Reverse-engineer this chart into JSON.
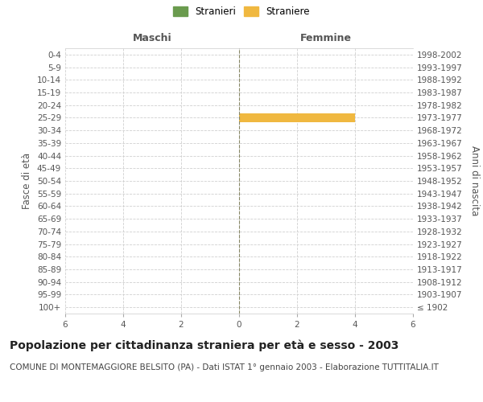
{
  "age_groups": [
    "100+",
    "95-99",
    "90-94",
    "85-89",
    "80-84",
    "75-79",
    "70-74",
    "65-69",
    "60-64",
    "55-59",
    "50-54",
    "45-49",
    "40-44",
    "35-39",
    "30-34",
    "25-29",
    "20-24",
    "15-19",
    "10-14",
    "5-9",
    "0-4"
  ],
  "birth_years": [
    "≤ 1902",
    "1903-1907",
    "1908-1912",
    "1913-1917",
    "1918-1922",
    "1923-1927",
    "1928-1932",
    "1933-1937",
    "1938-1942",
    "1943-1947",
    "1948-1952",
    "1953-1957",
    "1958-1962",
    "1963-1967",
    "1968-1972",
    "1973-1977",
    "1978-1982",
    "1983-1987",
    "1988-1992",
    "1993-1997",
    "1998-2002"
  ],
  "males_stranieri": [
    0,
    0,
    0,
    0,
    0,
    0,
    0,
    0,
    0,
    0,
    0,
    0,
    0,
    0,
    0,
    0,
    0,
    0,
    0,
    0,
    0
  ],
  "females_straniere": [
    0,
    0,
    0,
    0,
    0,
    0,
    0,
    0,
    0,
    0,
    0,
    0,
    0,
    0,
    0,
    4,
    0,
    0,
    0,
    0,
    0
  ],
  "male_color": "#6a9b4e",
  "female_color": "#f0b840",
  "xlim": 6,
  "title": "Popolazione per cittadinanza straniera per età e sesso - 2003",
  "subtitle": "COMUNE DI MONTEMAGGIORE BELSITO (PA) - Dati ISTAT 1° gennaio 2003 - Elaborazione TUTTITALIA.IT",
  "ylabel_left": "Fasce di età",
  "ylabel_right": "Anni di nascita",
  "legend_stranieri": "Stranieri",
  "legend_straniere": "Straniere",
  "header_maschi": "Maschi",
  "header_femmine": "Femmine",
  "background_color": "#ffffff",
  "grid_color": "#d0d0d0",
  "title_fontsize": 10,
  "subtitle_fontsize": 7.5,
  "tick_fontsize": 7.5,
  "label_fontsize": 8.5,
  "header_fontsize": 9
}
